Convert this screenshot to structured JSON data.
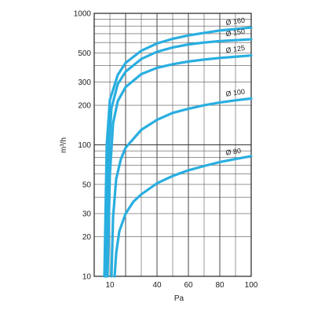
{
  "chart_data": {
    "type": "line",
    "xlabel": "Pa",
    "ylabel": "m³/h",
    "xscale": "linear",
    "yscale": "log",
    "xlim": [
      0,
      100
    ],
    "ylim": [
      10,
      1000
    ],
    "x_ticks": [
      "10",
      "40",
      "60",
      "80",
      "100"
    ],
    "y_ticks": [
      "1000",
      "500",
      "300",
      "200",
      "100",
      "50",
      "30",
      "20",
      "10"
    ],
    "grid": true,
    "color": "#29aee0",
    "series": [
      {
        "name": "Ø 160",
        "x": [
          6.5,
          8,
          10,
          15,
          20,
          30,
          40,
          50,
          60,
          70,
          80,
          90,
          100
        ],
        "y": [
          10,
          100,
          220,
          340,
          420,
          520,
          590,
          640,
          680,
          710,
          740,
          760,
          780
        ]
      },
      {
        "name": "Ø 150",
        "x": [
          7.5,
          9,
          11,
          15,
          20,
          30,
          40,
          50,
          60,
          70,
          80,
          90,
          100
        ],
        "y": [
          10,
          80,
          190,
          290,
          360,
          450,
          510,
          550,
          580,
          600,
          615,
          625,
          635
        ]
      },
      {
        "name": "Ø 125",
        "x": [
          8.5,
          10,
          12,
          15,
          20,
          30,
          40,
          50,
          60,
          70,
          80,
          90,
          100
        ],
        "y": [
          10,
          60,
          145,
          215,
          275,
          345,
          385,
          410,
          430,
          445,
          458,
          468,
          478
        ]
      },
      {
        "name": "Ø 100",
        "x": [
          11,
          12,
          14,
          17,
          20,
          30,
          40,
          50,
          60,
          70,
          80,
          90,
          100
        ],
        "y": [
          10,
          28,
          55,
          78,
          95,
          130,
          155,
          175,
          188,
          200,
          210,
          218,
          225
        ]
      },
      {
        "name": "Ø 80",
        "x": [
          13,
          14,
          16,
          20,
          25,
          30,
          40,
          50,
          60,
          70,
          80,
          90,
          100
        ],
        "y": [
          10,
          15,
          22,
          30,
          37,
          42,
          51,
          58,
          64,
          69,
          74,
          78,
          82
        ]
      }
    ]
  }
}
